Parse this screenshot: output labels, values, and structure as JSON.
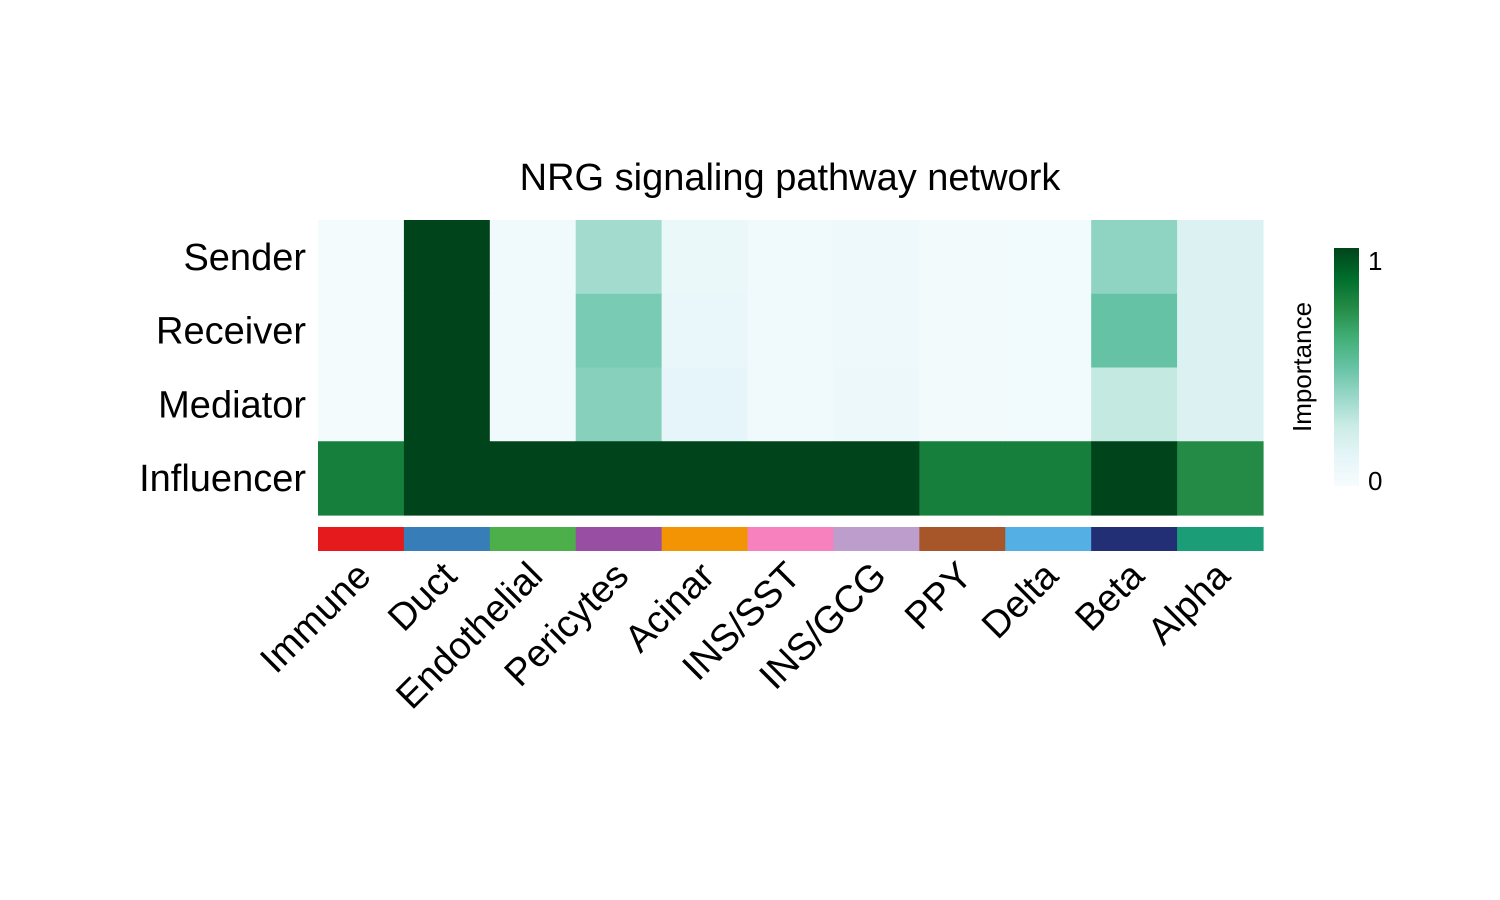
{
  "chart_data": {
    "type": "heatmap",
    "title": "NRG signaling pathway network",
    "rows": [
      "Sender",
      "Receiver",
      "Mediator",
      "Influencer"
    ],
    "columns": [
      "Immune",
      "Duct",
      "Endothelial",
      "Pericytes",
      "Acinar",
      "INS/SST",
      "INS/GCG",
      "PPY",
      "Delta",
      "Beta",
      "Alpha"
    ],
    "values": [
      [
        0.02,
        1.0,
        0.05,
        0.35,
        0.08,
        0.05,
        0.06,
        0.03,
        0.04,
        0.4,
        0.17
      ],
      [
        0.02,
        1.0,
        0.05,
        0.45,
        0.09,
        0.05,
        0.06,
        0.03,
        0.04,
        0.5,
        0.17
      ],
      [
        0.02,
        1.0,
        0.05,
        0.42,
        0.12,
        0.05,
        0.07,
        0.03,
        0.04,
        0.27,
        0.17
      ],
      [
        0.8,
        1.0,
        1.0,
        1.0,
        1.0,
        1.0,
        1.0,
        0.8,
        0.8,
        1.0,
        0.75
      ]
    ],
    "column_annotation_colors": [
      "#E41A1C",
      "#377EB8",
      "#4DAF4A",
      "#984EA3",
      "#F29403",
      "#F781BF",
      "#BC9DCC",
      "#A65628",
      "#54B0E4",
      "#222F75",
      "#1B9E77"
    ],
    "legend": {
      "title": "Importance",
      "min_label": "0",
      "max_label": "1",
      "colors": [
        "#F7FCFD",
        "#E5F5F9",
        "#CCECE6",
        "#99D8C9",
        "#66C2A4",
        "#41AE76",
        "#238B45",
        "#006D2C",
        "#00441B"
      ]
    }
  }
}
